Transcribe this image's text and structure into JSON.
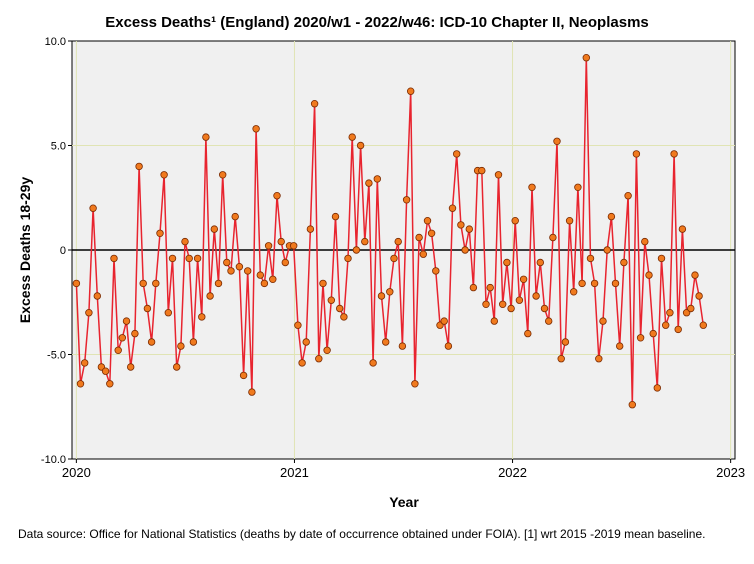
{
  "chart_data": {
    "type": "line",
    "title": "Excess Deaths¹ (England) 2020/w1 - 2022/w46: ICD-10 Chapter II, Neoplasms",
    "xlabel": "Year",
    "ylabel": "Excess Deaths 18-29y",
    "xlim": [
      2019.98,
      2023.02
    ],
    "ylim": [
      -10,
      10
    ],
    "x_ticks": [
      2020,
      2021,
      2022,
      2023
    ],
    "x_tick_labels": [
      "2020",
      "2021",
      "2022",
      "2023"
    ],
    "y_ticks": [
      10,
      5,
      0,
      -5,
      -10
    ],
    "y_tick_labels": [
      "10.0",
      "5.0",
      "0",
      "-5.0",
      "-10.0"
    ],
    "reference_line": 0,
    "grid": true,
    "series": [
      {
        "name": "Excess Deaths 18-29y",
        "start": 2020.0,
        "step_weeks": 1,
        "values": [
          -1.6,
          -6.4,
          -5.4,
          -3.0,
          2.0,
          -2.2,
          -5.6,
          -5.8,
          -6.4,
          -0.4,
          -4.8,
          -4.2,
          -3.4,
          -5.6,
          -4.0,
          4.0,
          -1.6,
          -2.8,
          -4.4,
          -1.6,
          0.8,
          3.6,
          -3.0,
          -0.4,
          -5.6,
          -4.6,
          0.4,
          -0.4,
          -4.4,
          -0.4,
          -3.2,
          5.4,
          -2.2,
          1.0,
          -1.6,
          3.6,
          -0.6,
          -1.0,
          1.6,
          -0.8,
          -6.0,
          -1.0,
          -6.8,
          5.8,
          -1.2,
          -1.6,
          0.2,
          -1.4,
          2.6,
          0.4,
          -0.6,
          0.2,
          0.2,
          -3.6,
          -5.4,
          -4.4,
          1.0,
          7.0,
          -5.2,
          -1.6,
          -4.8,
          -2.4,
          1.6,
          -2.8,
          -3.2,
          -0.4,
          5.4,
          0.0,
          5.0,
          0.4,
          3.2,
          -5.4,
          3.4,
          -2.2,
          -4.4,
          -2.0,
          -0.4,
          0.4,
          -4.6,
          2.4,
          7.6,
          -6.4,
          0.6,
          -0.2,
          1.4,
          0.8,
          -1.0,
          -3.6,
          -3.4,
          -4.6,
          2.0,
          4.6,
          1.2,
          0.0,
          1.0,
          -1.8,
          3.8,
          3.8,
          -2.6,
          -1.8,
          -3.4,
          3.6,
          -2.6,
          -0.6,
          -2.8,
          1.4,
          -2.4,
          -1.4,
          -4.0,
          3.0,
          -2.2,
          -0.6,
          -2.8,
          -3.4,
          0.6,
          5.2,
          -5.2,
          -4.4,
          1.4,
          -2.0,
          3.0,
          -1.6,
          9.2,
          -0.4,
          -1.6,
          -5.2,
          -3.4,
          0.0,
          1.6,
          -1.6,
          -4.6,
          -0.6,
          2.6,
          -7.4,
          4.6,
          -4.2,
          0.4,
          -1.2,
          -4.0,
          -6.6,
          -0.4,
          -3.6,
          -3.0,
          4.6,
          -3.8,
          1.0,
          -3.0,
          -2.8,
          -1.2,
          -2.2,
          -3.6
        ]
      }
    ],
    "colors": {
      "line": "#e8242f",
      "marker_fill": "#f07a1e",
      "marker_edge": "#7a2a00",
      "plot_bg": "#f0f0f0",
      "grid": "#e0e4b4",
      "zero_line": "#000000"
    }
  },
  "footnote": "Data source: Office for National Statistics (deaths by date of occurrence obtained under FOIA). [1] wrt 2015 -2019 mean baseline."
}
